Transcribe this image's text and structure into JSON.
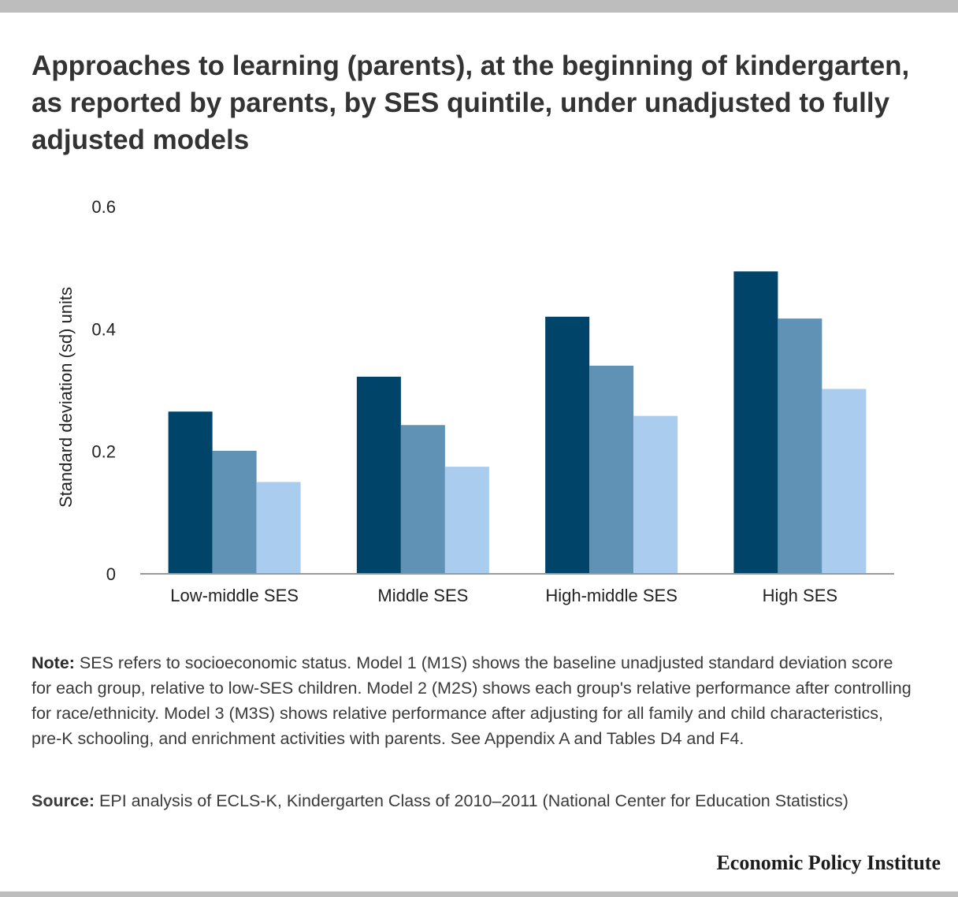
{
  "title": "Approaches to learning (parents), at the beginning of kindergarten, as reported by parents, by SES quintile, under unadjusted to fully adjusted models",
  "chart_data": {
    "type": "bar",
    "categories": [
      "Low-middle SES",
      "Middle SES",
      "High-middle SES",
      "High SES"
    ],
    "series": [
      {
        "color": "#01446a",
        "values": [
          0.265,
          0.322,
          0.42,
          0.494
        ]
      },
      {
        "color": "#5f92b5",
        "values": [
          0.201,
          0.243,
          0.34,
          0.417
        ]
      },
      {
        "color": "#aacdef",
        "values": [
          0.15,
          0.175,
          0.258,
          0.302
        ]
      }
    ],
    "ylabel": "Standard deviation (sd) units",
    "ylim": [
      0,
      0.6
    ],
    "yticks": [
      0,
      0.2,
      0.4,
      0.6
    ],
    "ytick_labels": [
      "0",
      "0.2",
      "0.4",
      "0.6"
    ],
    "grid": false,
    "legend": "none"
  },
  "note": {
    "label": "Note:",
    "text": " SES refers to socioeconomic status. Model 1 (M1S) shows the baseline unadjusted standard deviation score for each group, relative to low-SES children. Model 2 (M2S) shows each group's relative performance after controlling for race/ethnicity. Model 3 (M3S) shows relative performance after adjusting for all family and child characteristics, pre-K schooling, and enrichment activities with parents. See Appendix A and Tables D4 and F4."
  },
  "source": {
    "label": "Source:",
    "text": " EPI analysis of ECLS-K, Kindergarten Class of 2010–2011 (National Center for Education Statistics)"
  },
  "brand": "Economic Policy Institute"
}
